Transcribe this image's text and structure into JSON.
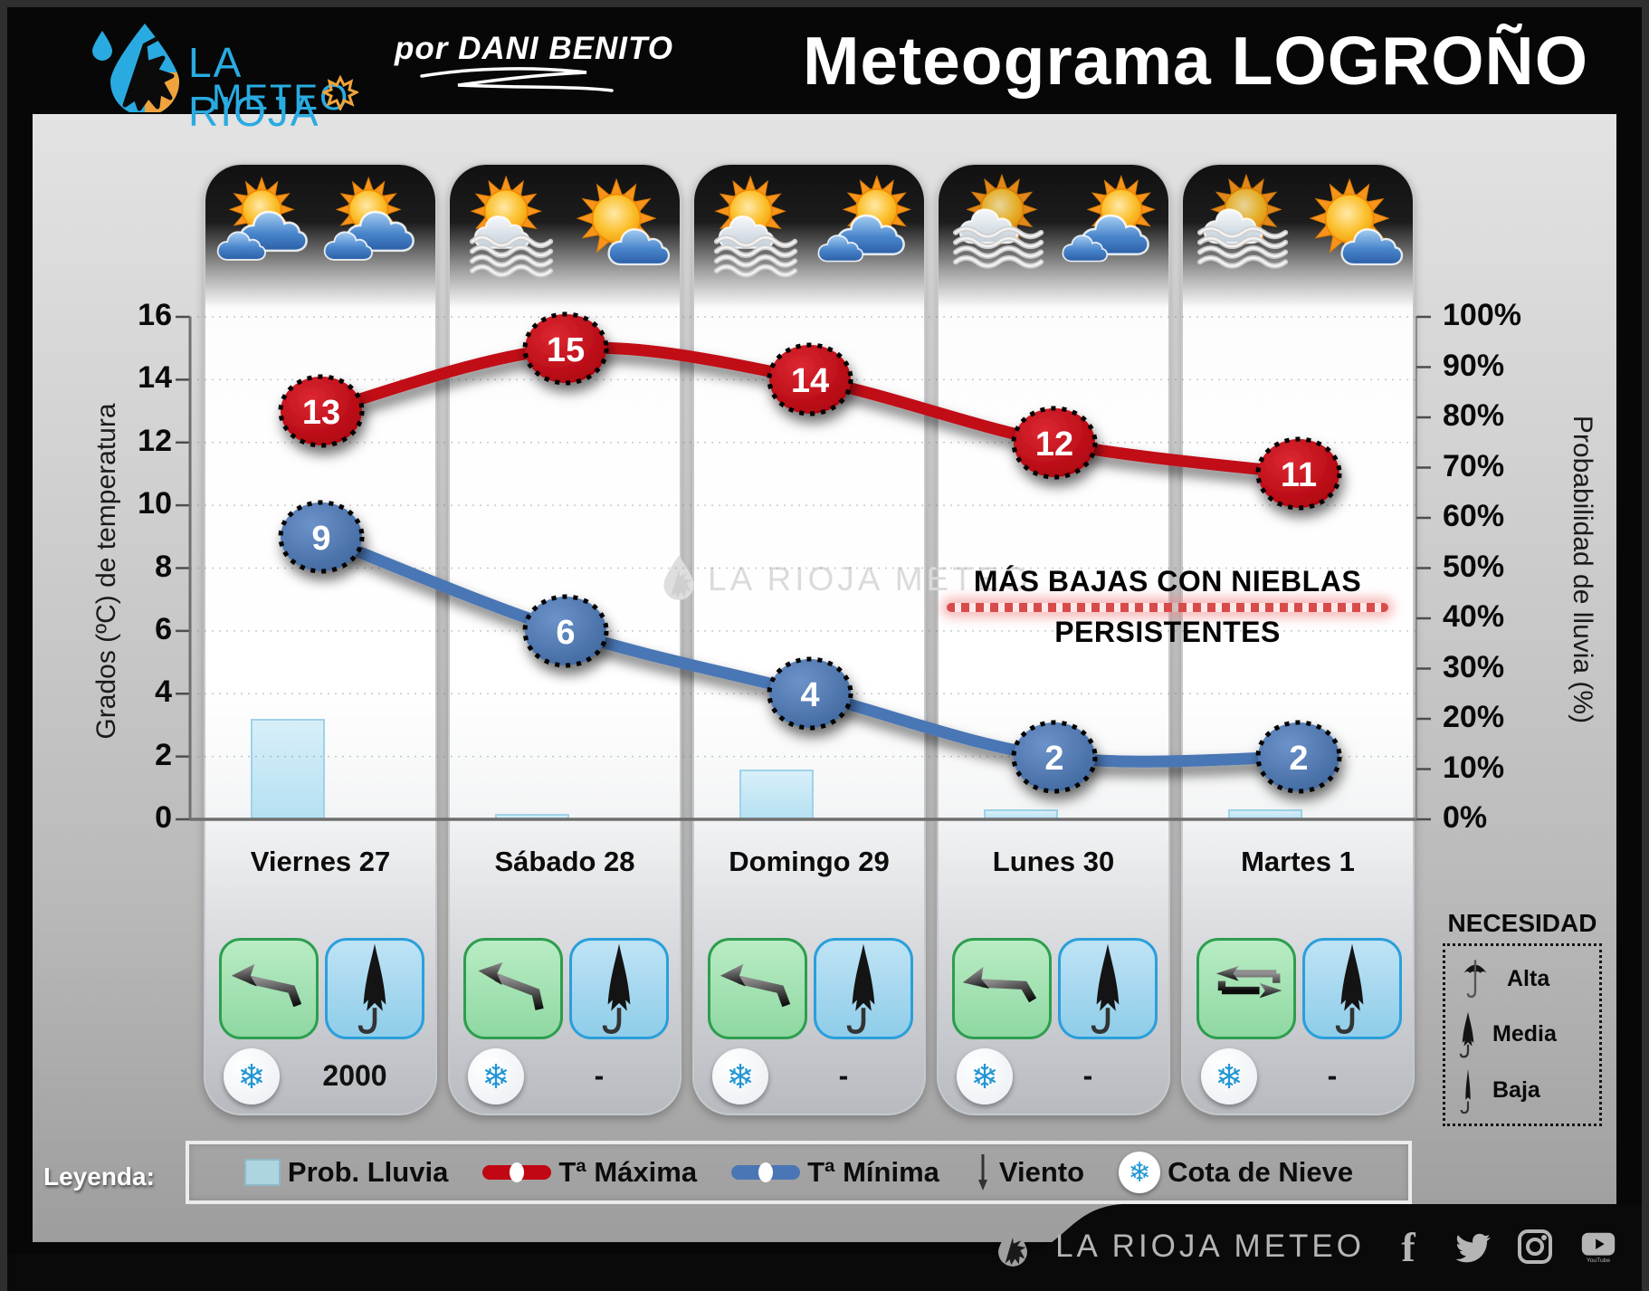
{
  "header": {
    "brand_line1": "LA RIOJA",
    "brand_line2": "METEO",
    "byline": "por DANI BENITO",
    "title": "Meteograma LOGROÑO"
  },
  "chart_data": {
    "type": "line",
    "categories": [
      "Viernes 27",
      "Sábado 28",
      "Domingo 29",
      "Lunes 30",
      "Martes 1"
    ],
    "series": [
      {
        "name": "Tª Máxima",
        "type": "line",
        "color": "#c10713",
        "values": [
          13,
          15,
          14,
          12,
          11
        ]
      },
      {
        "name": "Tª Mínima",
        "type": "line",
        "color": "#4a76b5",
        "values": [
          9,
          6,
          4,
          2,
          2
        ]
      },
      {
        "name": "Prob. Lluvia",
        "type": "bar",
        "color": "#c3e7f6",
        "unit": "%",
        "values": [
          20,
          1,
          10,
          2,
          2
        ]
      }
    ],
    "left_axis": {
      "label": "Grados (ºC) de temperatura",
      "min": 0,
      "max": 16,
      "ticks": [
        0,
        2,
        4,
        6,
        8,
        10,
        12,
        14,
        16
      ]
    },
    "right_axis": {
      "label": "Probabilidad de lluvia (%)",
      "min": 0,
      "max": 100,
      "ticks": [
        "0%",
        "10%",
        "20%",
        "30%",
        "40%",
        "50%",
        "60%",
        "70%",
        "80%",
        "90%",
        "100%"
      ]
    },
    "annotation": {
      "line1": "MÁS BAJAS CON NIEBLAS",
      "line2": "PERSISTENTES"
    },
    "watermark": "LA RIOJA METEO",
    "grid": true,
    "legend_position": "bottom"
  },
  "days": [
    {
      "label": "Viernes 27",
      "icons": [
        "sun-clouds",
        "sun-clouds"
      ],
      "tmax": 13,
      "tmin": 9,
      "rain_pct": 20,
      "wind": "WNW",
      "wind_icon": "arrow",
      "umbrella": "media",
      "snow_level": "2000"
    },
    {
      "label": "Sábado 28",
      "icons": [
        "sun-fog",
        "sun-cloud"
      ],
      "tmax": 15,
      "tmin": 6,
      "rain_pct": 1,
      "wind": "W",
      "wind_icon": "arrow",
      "umbrella": "media",
      "snow_level": "-"
    },
    {
      "label": "Domingo 29",
      "icons": [
        "sun-fog",
        "cloud-sun"
      ],
      "tmax": 14,
      "tmin": 4,
      "rain_pct": 10,
      "wind": "WNW",
      "wind_icon": "arrow",
      "umbrella": "media",
      "snow_level": "-"
    },
    {
      "label": "Lunes 30",
      "icons": [
        "fog-sun",
        "cloud-sun"
      ],
      "tmax": 12,
      "tmin": 2,
      "rain_pct": 2,
      "wind": "NW",
      "wind_icon": "arrow",
      "umbrella": "media",
      "snow_level": "-"
    },
    {
      "label": "Martes 1",
      "icons": [
        "fog-sun",
        "sun-cloud"
      ],
      "tmax": 11,
      "tmin": 2,
      "rain_pct": 2,
      "wind": "variable",
      "wind_icon": "loop",
      "umbrella": "media",
      "snow_level": "-"
    }
  ],
  "necesidad": {
    "title": "NECESIDAD",
    "items": [
      {
        "icon": "umbrella-open",
        "label": "Alta"
      },
      {
        "icon": "umbrella-half",
        "label": "Media"
      },
      {
        "icon": "umbrella-closed",
        "label": "Baja"
      }
    ]
  },
  "legend": {
    "title": "Leyenda:",
    "items": [
      {
        "icon": "bar-swatch",
        "label": "Prob. Lluvia"
      },
      {
        "icon": "line-red",
        "label": "Tª Máxima"
      },
      {
        "icon": "line-blue",
        "label": "Tª Mínima"
      },
      {
        "icon": "wind-arrow",
        "label": "Viento"
      },
      {
        "icon": "snowflake",
        "label": "Cota de Nieve"
      }
    ]
  },
  "footer": {
    "brand": "LA RIOJA METEO",
    "social": [
      "facebook",
      "twitter",
      "instagram",
      "youtube"
    ]
  },
  "colors": {
    "tmax": "#c10713",
    "tmin": "#4a76b5",
    "rain_bar": "#c3e7f6",
    "brand_blue": "#29abe2",
    "brand_orange": "#f0a33c",
    "snowflake": "#2196d3",
    "annotation_band": "#d84b4b",
    "wind_card_green": "#9fdcab",
    "umbrella_card_blue": "#a7d8ee"
  }
}
